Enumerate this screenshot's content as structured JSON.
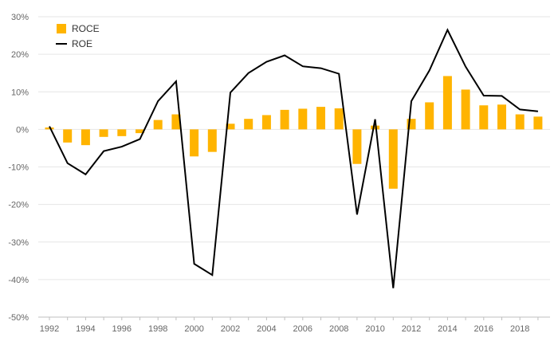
{
  "chart_data": {
    "type": "bar+line",
    "x": [
      1992,
      1993,
      1994,
      1995,
      1996,
      1997,
      1998,
      1999,
      2000,
      2001,
      2002,
      2003,
      2004,
      2005,
      2006,
      2007,
      2008,
      2009,
      2010,
      2011,
      2012,
      2013,
      2014,
      2015,
      2016,
      2017,
      2018,
      2019
    ],
    "x_tick_labels": [
      "1992",
      "1994",
      "1996",
      "1998",
      "2000",
      "2002",
      "2004",
      "2006",
      "2008",
      "2010",
      "2012",
      "2014",
      "2016",
      "2018"
    ],
    "series": [
      {
        "name": "ROCE",
        "type": "bar",
        "color": "#FFB400",
        "values": [
          0.5,
          -3.5,
          -4.2,
          -2.0,
          -1.8,
          -1.0,
          2.5,
          4.0,
          -7.2,
          -6.0,
          1.5,
          2.8,
          3.8,
          5.2,
          5.5,
          6.0,
          5.6,
          -9.2,
          1.0,
          -15.8,
          2.8,
          7.2,
          14.2,
          10.6,
          6.4,
          6.6,
          4.0,
          3.4
        ]
      },
      {
        "name": "ROE",
        "type": "line",
        "color": "#000000",
        "values": [
          0.8,
          -9.0,
          -12.0,
          -5.8,
          -4.6,
          -2.6,
          7.5,
          12.8,
          -35.8,
          -38.8,
          9.8,
          15.0,
          18.0,
          19.7,
          16.8,
          16.3,
          14.8,
          -22.7,
          2.7,
          -42.3,
          7.5,
          15.7,
          26.5,
          16.7,
          9.0,
          8.9,
          5.3,
          4.8
        ]
      }
    ],
    "y_ticks": [
      30,
      20,
      10,
      0,
      -10,
      -20,
      -30,
      -40,
      -50
    ],
    "y_tick_labels": [
      "30%",
      "20%",
      "10%",
      "0%",
      "-10%",
      "-20%",
      "-30%",
      "-40%",
      "-50%"
    ],
    "ylim": [
      -50,
      30
    ],
    "grid": true,
    "legend": "top-left",
    "title": "",
    "xlabel": "",
    "ylabel": ""
  }
}
